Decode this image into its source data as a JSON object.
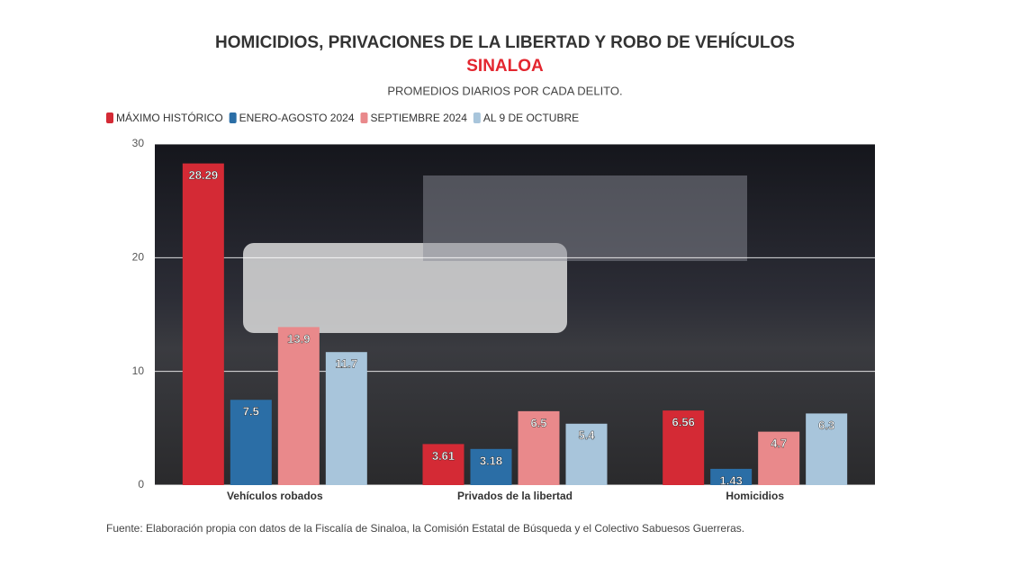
{
  "chart_data": {
    "type": "bar",
    "title": "HOMICIDIOS, PRIVACIONES DE LA LIBERTAD Y ROBO DE VEHÍCULOS",
    "subtitle": "SINALOA",
    "description": "PROMEDIOS DIARIOS POR CADA DELITO.",
    "source": "Fuente: Elaboración propia con datos de la Fiscalía de Sinaloa, la Comisión Estatal de Búsqueda y el Colectivo Sabuesos Guerreras.",
    "categories": [
      "Vehículos robados",
      "Privados de la libertad",
      "Homicidios"
    ],
    "series": [
      {
        "name": "MÁXIMO HISTÓRICO",
        "color": "#d42a35",
        "values": [
          28.29,
          3.61,
          6.56
        ]
      },
      {
        "name": "ENERO-AGOSTO 2024",
        "color": "#2b6ea6",
        "values": [
          7.5,
          3.18,
          1.43
        ]
      },
      {
        "name": "SEPTIEMBRE 2024",
        "color": "#e9898b",
        "values": [
          13.9,
          6.5,
          4.7
        ]
      },
      {
        "name": "AL 9 DE OCTUBRE",
        "color": "#a8c5db",
        "values": [
          11.7,
          5.4,
          6.3
        ]
      }
    ],
    "ylim": [
      0,
      30
    ],
    "yticks": [
      0,
      10,
      20,
      30
    ],
    "grid": true,
    "legend": "top-left"
  }
}
